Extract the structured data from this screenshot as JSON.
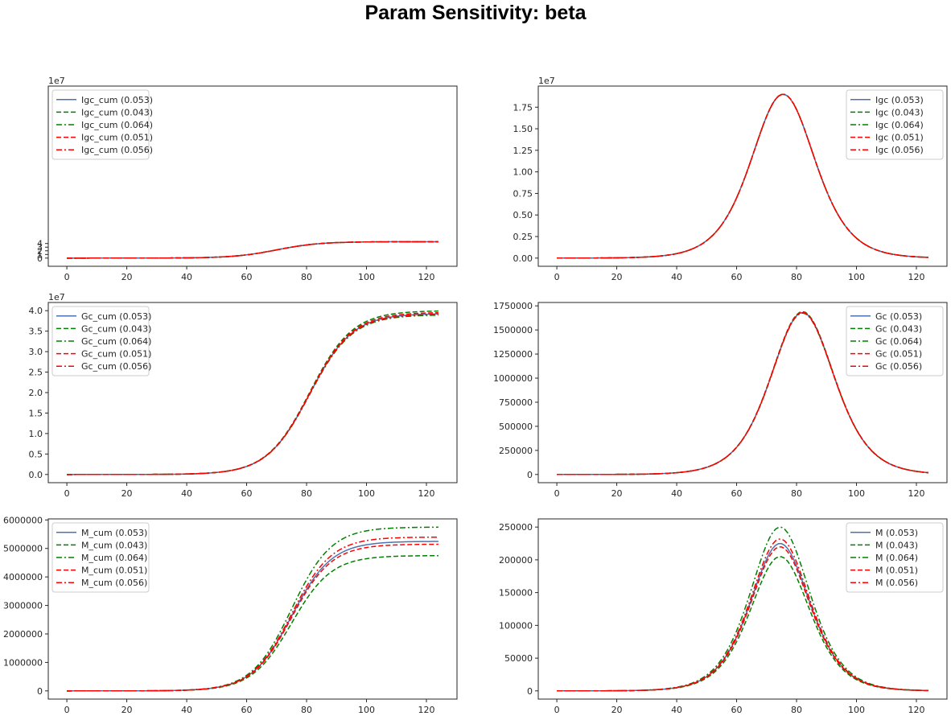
{
  "suptitle": "Param Sensitivity: beta",
  "colors": {
    "blue": "#4c72b0",
    "green": "#008000",
    "red": "#ff0000"
  },
  "chart_data": [
    {
      "type": "line",
      "id": "igc_cum",
      "xlim": [
        -6.2,
        130.2
      ],
      "ylim": [
        -2.25,
        47.25
      ],
      "xticks": [
        0,
        20,
        40,
        60,
        80,
        100,
        120
      ],
      "yticks": [
        0,
        1,
        2,
        3,
        4
      ],
      "ytick_labels": [
        "0",
        "1",
        "2",
        "3",
        "4"
      ],
      "offset_text": "1e7",
      "legend": "upper left",
      "curve": {
        "kind": "logistic",
        "x0": 70,
        "k": 0.14,
        "x_end": 124
      },
      "series": [
        {
          "name": "Igc_cum (0.053)",
          "color": "blue",
          "dash": "solid",
          "amp": 4.5
        },
        {
          "name": "Igc_cum (0.043)",
          "color": "green",
          "dash": "dashed",
          "amp": 4.5
        },
        {
          "name": "Igc_cum (0.064)",
          "color": "green",
          "dash": "dashdot",
          "amp": 4.5
        },
        {
          "name": "Igc_cum (0.051)",
          "color": "red",
          "dash": "dashed",
          "amp": 4.5
        },
        {
          "name": "Igc_cum (0.056)",
          "color": "red",
          "dash": "dashdot",
          "amp": 4.5
        }
      ]
    },
    {
      "type": "line",
      "id": "igc",
      "xlim": [
        -6.2,
        130.2
      ],
      "ylim": [
        -0.095,
        1.995
      ],
      "xticks": [
        0,
        20,
        40,
        60,
        80,
        100,
        120
      ],
      "yticks": [
        0,
        0.25,
        0.5,
        0.75,
        1.0,
        1.25,
        1.5,
        1.75
      ],
      "ytick_labels": [
        "0.00",
        "0.25",
        "0.50",
        "0.75",
        "1.00",
        "1.25",
        "1.50",
        "1.75"
      ],
      "offset_text": "1e7",
      "legend": "upper right",
      "curve": {
        "kind": "bell",
        "x0": 75.5,
        "k": 0.14,
        "x_end": 124
      },
      "series": [
        {
          "name": "Igc (0.053)",
          "color": "blue",
          "dash": "solid",
          "amp": 1.9
        },
        {
          "name": "Igc (0.043)",
          "color": "green",
          "dash": "dashed",
          "amp": 1.9
        },
        {
          "name": "Igc (0.064)",
          "color": "green",
          "dash": "dashdot",
          "amp": 1.9
        },
        {
          "name": "Igc (0.051)",
          "color": "red",
          "dash": "dashed",
          "amp": 1.9
        },
        {
          "name": "Igc (0.056)",
          "color": "red",
          "dash": "dashdot",
          "amp": 1.9
        }
      ]
    },
    {
      "type": "line",
      "id": "gc_cum",
      "xlim": [
        -6.2,
        130.2
      ],
      "ylim": [
        -0.2,
        4.2
      ],
      "xticks": [
        0,
        20,
        40,
        60,
        80,
        100,
        120
      ],
      "yticks": [
        0,
        0.5,
        1.0,
        1.5,
        2.0,
        2.5,
        3.0,
        3.5,
        4.0
      ],
      "ytick_labels": [
        "0.0",
        "0.5",
        "1.0",
        "1.5",
        "2.0",
        "2.5",
        "3.0",
        "3.5",
        "4.0"
      ],
      "offset_text": "1e7",
      "legend": "upper left",
      "curve": {
        "kind": "logistic",
        "x0": 81,
        "k": 0.14,
        "x_end": 124
      },
      "series": [
        {
          "name": "Gc_cum (0.053)",
          "color": "blue",
          "dash": "solid",
          "amp": 3.93
        },
        {
          "name": "Gc_cum (0.043)",
          "color": "green",
          "dash": "dashed",
          "amp": 4.0
        },
        {
          "name": "Gc_cum (0.064)",
          "color": "green",
          "dash": "dashdot",
          "amp": 3.9
        },
        {
          "name": "Gc_cum (0.051)",
          "color": "red",
          "dash": "dashed",
          "amp": 3.96
        },
        {
          "name": "Gc_cum (0.056)",
          "color": "red",
          "dash": "dashdot",
          "amp": 3.92
        }
      ]
    },
    {
      "type": "line",
      "id": "gc",
      "xlim": [
        -6.2,
        130.2
      ],
      "ylim": [
        -85000,
        1785000
      ],
      "xticks": [
        0,
        20,
        40,
        60,
        80,
        100,
        120
      ],
      "yticks": [
        0,
        250000,
        500000,
        750000,
        1000000,
        1250000,
        1500000,
        1750000
      ],
      "ytick_labels": [
        "0",
        "250000",
        "500000",
        "750000",
        "1000000",
        "1250000",
        "1500000",
        "1750000"
      ],
      "offset_text": "",
      "legend": "upper right",
      "curve": {
        "kind": "bell",
        "x0": 82,
        "k": 0.14,
        "x_end": 124
      },
      "series": [
        {
          "name": "Gc (0.053)",
          "color": "blue",
          "dash": "solid",
          "amp": 1680000
        },
        {
          "name": "Gc (0.043)",
          "color": "green",
          "dash": "dashed",
          "amp": 1690000
        },
        {
          "name": "Gc (0.064)",
          "color": "green",
          "dash": "dashdot",
          "amp": 1675000
        },
        {
          "name": "Gc (0.051)",
          "color": "red",
          "dash": "dashed",
          "amp": 1685000
        },
        {
          "name": "Gc (0.056)",
          "color": "red",
          "dash": "dashdot",
          "amp": 1678000
        }
      ]
    },
    {
      "type": "line",
      "id": "m_cum",
      "xlim": [
        -6.2,
        130.2
      ],
      "ylim": [
        -287500,
        6037500
      ],
      "xticks": [
        0,
        20,
        40,
        60,
        80,
        100,
        120
      ],
      "yticks": [
        0,
        1000000,
        2000000,
        3000000,
        4000000,
        5000000,
        6000000
      ],
      "ytick_labels": [
        "0",
        "1000000",
        "2000000",
        "3000000",
        "4000000",
        "5000000",
        "6000000"
      ],
      "offset_text": "",
      "legend": "upper left",
      "curve": {
        "kind": "logistic",
        "x0": 75,
        "k": 0.15,
        "x_end": 124
      },
      "series": [
        {
          "name": "M_cum (0.053)",
          "color": "blue",
          "dash": "solid",
          "amp": 5250000
        },
        {
          "name": "M_cum (0.043)",
          "color": "green",
          "dash": "dashed",
          "amp": 4750000
        },
        {
          "name": "M_cum (0.064)",
          "color": "green",
          "dash": "dashdot",
          "amp": 5750000
        },
        {
          "name": "M_cum (0.051)",
          "color": "red",
          "dash": "dashed",
          "amp": 5150000
        },
        {
          "name": "M_cum (0.056)",
          "color": "red",
          "dash": "dashdot",
          "amp": 5400000
        }
      ]
    },
    {
      "type": "line",
      "id": "m",
      "xlim": [
        -6.2,
        130.2
      ],
      "ylim": [
        -12500,
        262500
      ],
      "xticks": [
        0,
        20,
        40,
        60,
        80,
        100,
        120
      ],
      "yticks": [
        0,
        50000,
        100000,
        150000,
        200000,
        250000
      ],
      "ytick_labels": [
        "0",
        "50000",
        "100000",
        "150000",
        "200000",
        "250000"
      ],
      "offset_text": "",
      "legend": "upper right",
      "curve": {
        "kind": "bell",
        "x0": 74.5,
        "k": 0.15,
        "x_end": 124
      },
      "series": [
        {
          "name": "M (0.053)",
          "color": "blue",
          "dash": "solid",
          "amp": 225000
        },
        {
          "name": "M (0.043)",
          "color": "green",
          "dash": "dashed",
          "amp": 205000
        },
        {
          "name": "M (0.064)",
          "color": "green",
          "dash": "dashdot",
          "amp": 250000
        },
        {
          "name": "M (0.051)",
          "color": "red",
          "dash": "dashed",
          "amp": 220000
        },
        {
          "name": "M (0.056)",
          "color": "red",
          "dash": "dashdot",
          "amp": 232000
        }
      ]
    }
  ]
}
